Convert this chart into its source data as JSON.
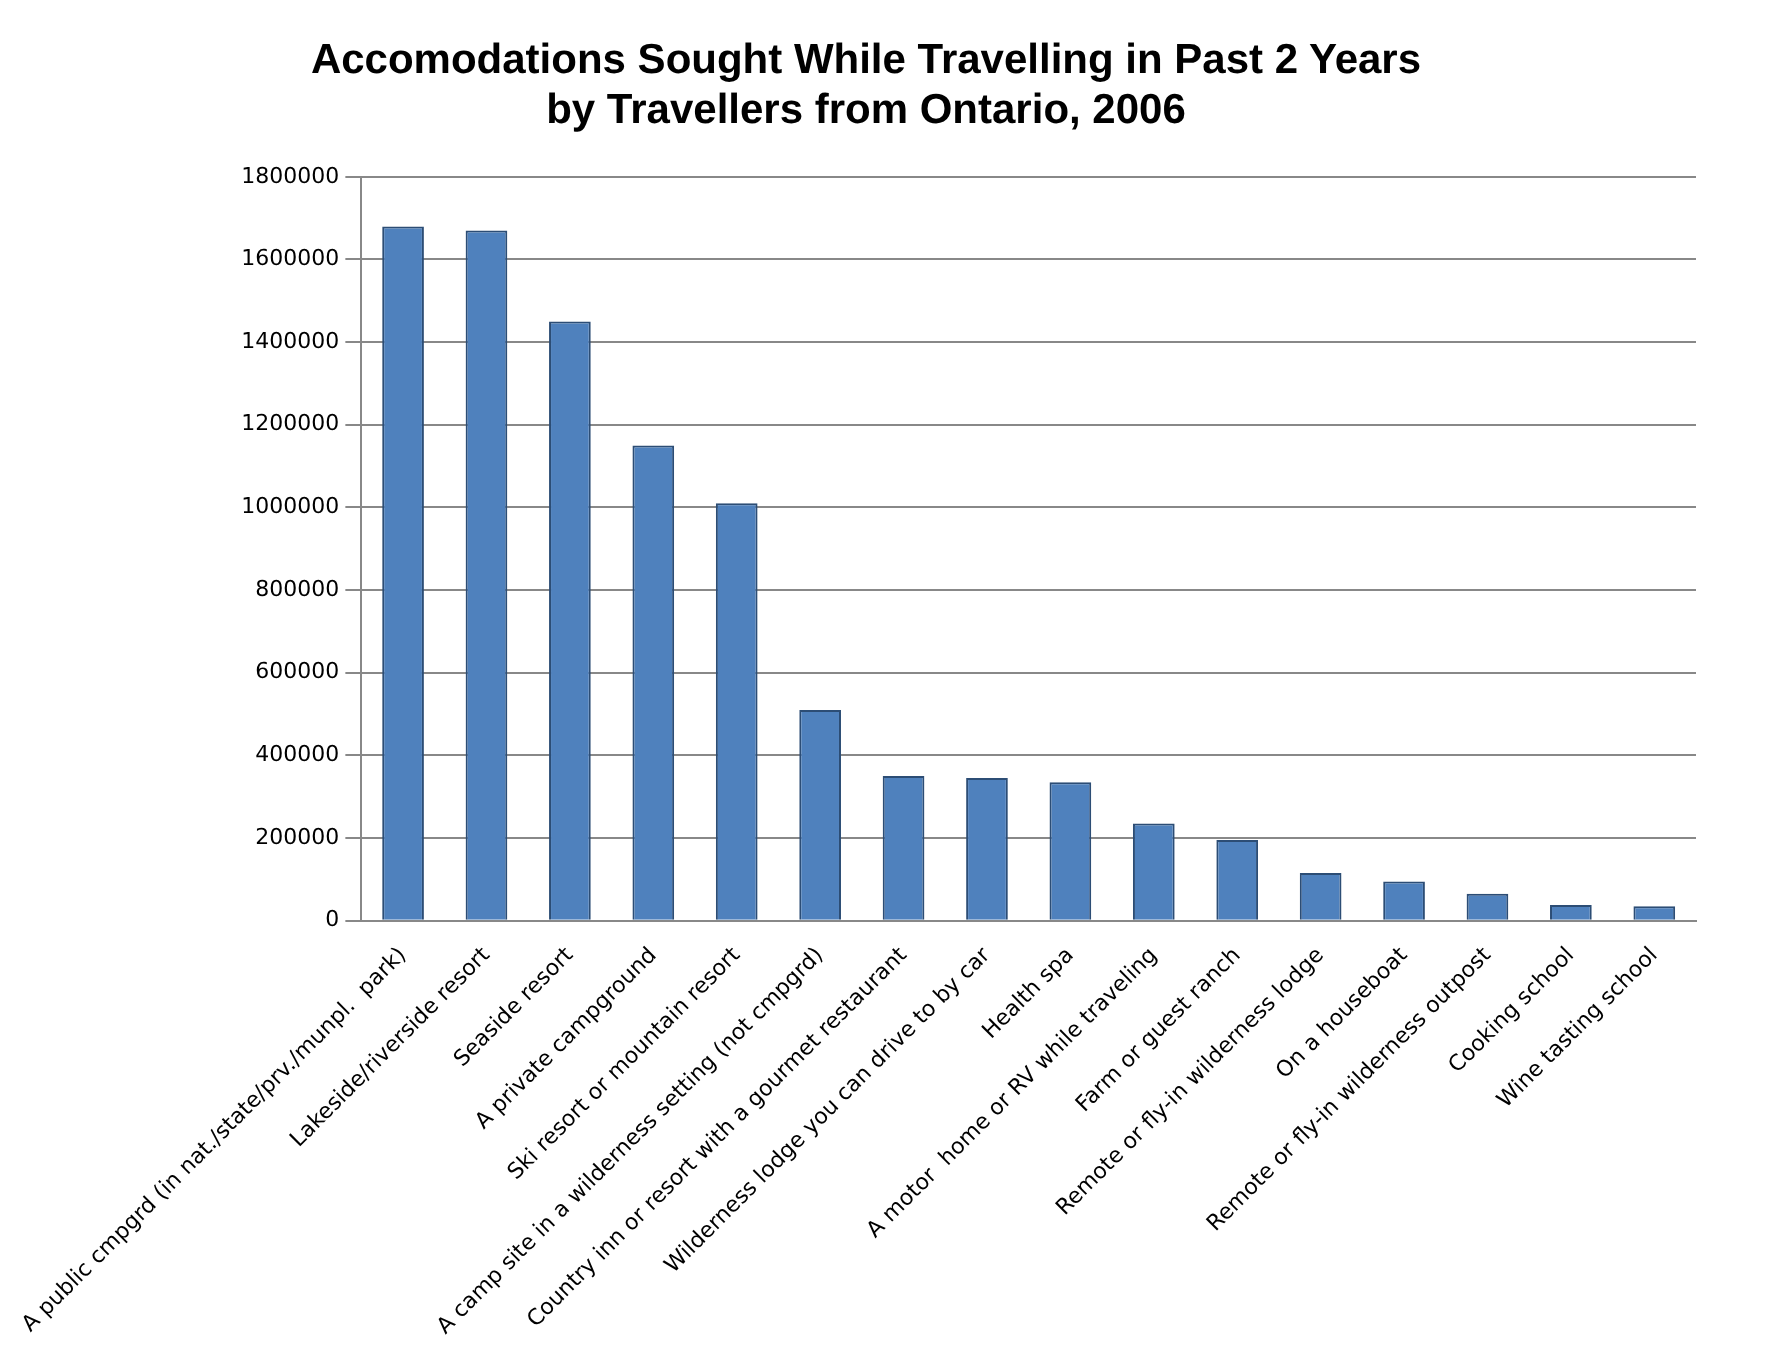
{
  "chart_data": {
    "type": "bar",
    "title": [
      "Accomodations Sought While Travelling in Past 2 Years",
      "by Travellers from Ontario, 2006"
    ],
    "categories": [
      "A public cmpgrd (in nat./state/prv./munpl.  park)",
      "Lakeside/riverside resort",
      "Seaside resort",
      "A private campground",
      "Ski resort or mountain resort",
      "A camp site in a wilderness setting (not cmpgrd)",
      "Country inn or resort with a gourmet restaurant",
      "Wilderness lodge you can drive to by car",
      "Health spa",
      "A motor  home or RV while traveling",
      "Farm or guest ranch",
      "Remote or fly-in wilderness lodge",
      "On a houseboat",
      "Remote or fly-in wilderness outpost",
      "Cooking school",
      "Wine tasting school"
    ],
    "values": [
      1680000,
      1670000,
      1450000,
      1150000,
      1010000,
      510000,
      350000,
      345000,
      335000,
      235000,
      195000,
      115000,
      95000,
      65000,
      38000,
      35000
    ],
    "color": "#4f81bd",
    "ylim": [
      0,
      1800000
    ],
    "yticks": [
      0,
      200000,
      400000,
      600000,
      800000,
      1000000,
      1200000,
      1400000,
      1600000,
      1800000
    ],
    "grid": "y",
    "legend": false
  }
}
